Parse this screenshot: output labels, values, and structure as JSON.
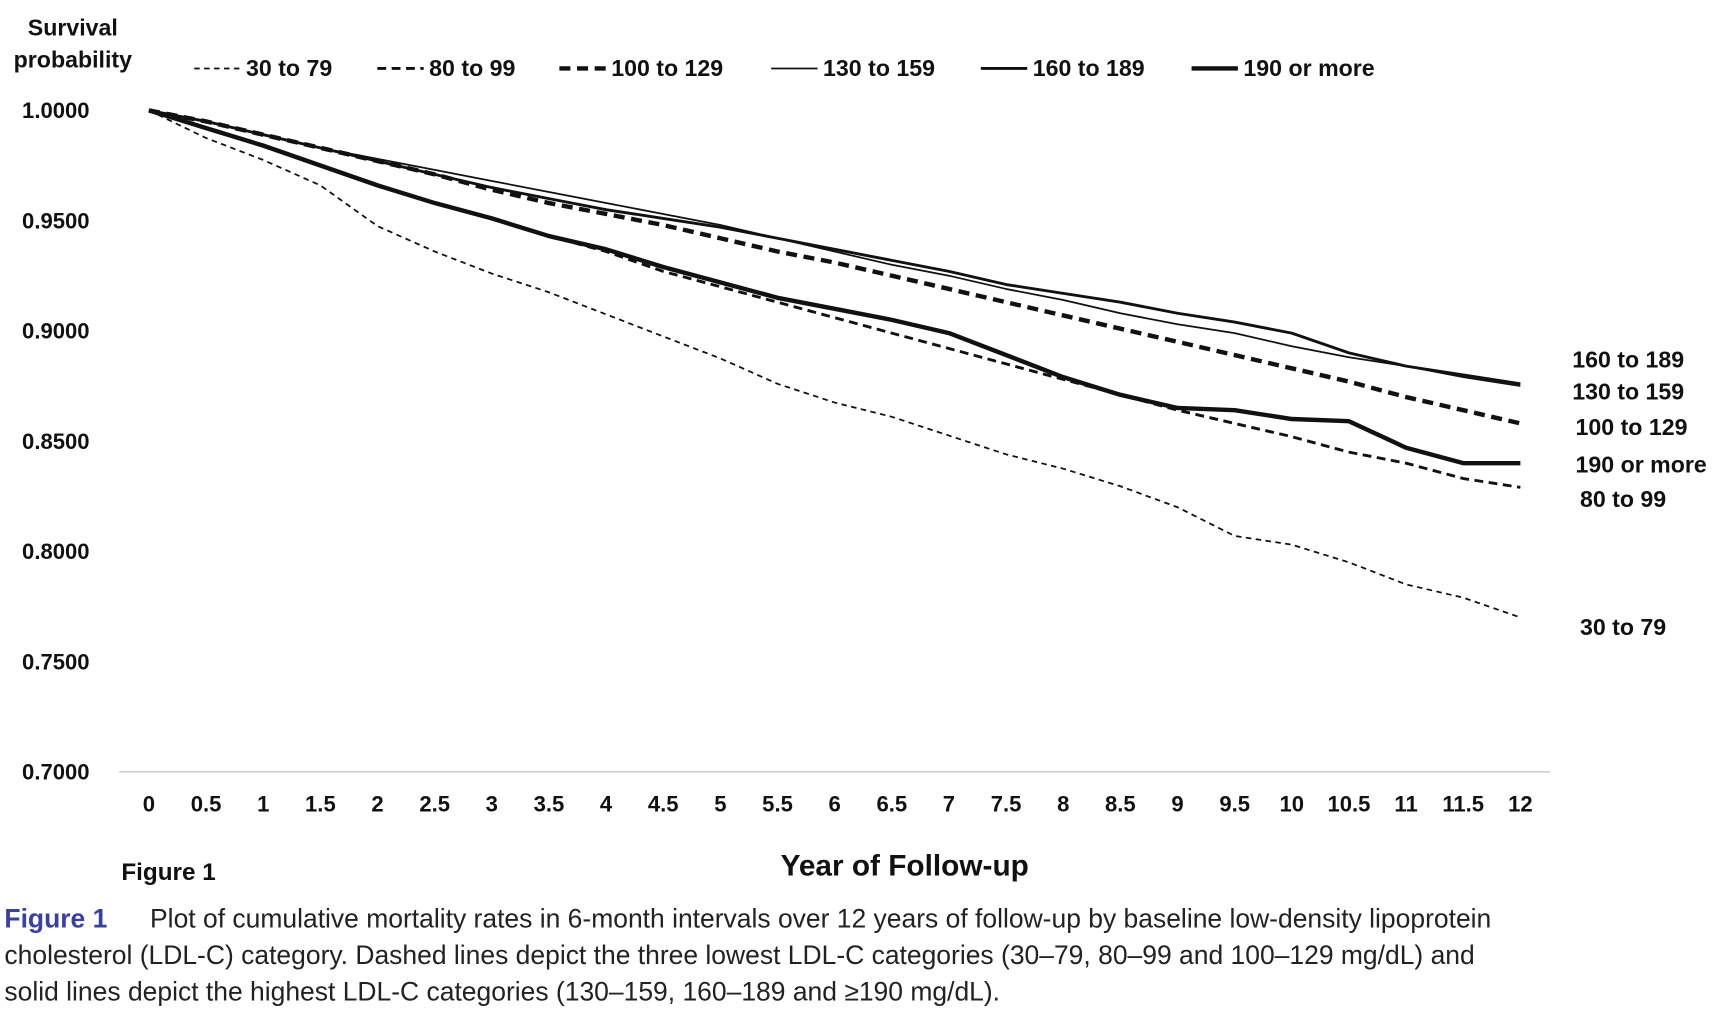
{
  "chart_data": {
    "type": "line",
    "ylabel_lines": [
      "Survival",
      "probability"
    ],
    "xlabel": "Year of Follow-up",
    "figure_label": "Figure 1",
    "ylim": [
      0.7,
      1.0
    ],
    "xlim": [
      0,
      12
    ],
    "y_ticks": [
      "1.0000",
      "0.9500",
      "0.9000",
      "0.8500",
      "0.8000",
      "0.7500",
      "0.7000"
    ],
    "x": [
      0,
      0.5,
      1,
      1.5,
      2,
      2.5,
      3,
      3.5,
      4,
      4.5,
      5,
      5.5,
      6,
      6.5,
      7,
      7.5,
      8,
      8.5,
      9,
      9.5,
      10,
      10.5,
      11,
      11.5,
      12
    ],
    "x_tick_labels": [
      "0",
      "0.5",
      "1",
      "1.5",
      "2",
      "2.5",
      "3",
      "3.5",
      "4",
      "4.5",
      "5",
      "5.5",
      "6",
      "6.5",
      "7",
      "7.5",
      "8",
      "8.5",
      "9",
      "9.5",
      "10",
      "10.5",
      "11",
      "11.5",
      "12"
    ],
    "grid": false,
    "legend_position": "top",
    "series": [
      {
        "name": "30 to 79",
        "style": "dashed-thin",
        "values": [
          1,
          0.9875,
          0.9775,
          0.966,
          0.9475,
          0.936,
          0.926,
          0.9175,
          0.9075,
          0.8975,
          0.8875,
          0.876,
          0.8675,
          0.861,
          0.8525,
          0.844,
          0.8375,
          0.8295,
          0.82,
          0.807,
          0.803,
          0.795,
          0.785,
          0.779,
          0.77
        ]
      },
      {
        "name": "80 to 99",
        "style": "dashed-medium",
        "values": [
          1,
          0.992,
          0.984,
          0.975,
          0.966,
          0.958,
          0.951,
          0.943,
          0.936,
          0.927,
          0.92,
          0.913,
          0.906,
          0.899,
          0.892,
          0.885,
          0.878,
          0.871,
          0.864,
          0.858,
          0.852,
          0.845,
          0.84,
          0.833,
          0.829
        ]
      },
      {
        "name": "100 to 129",
        "style": "dashed-thick",
        "values": [
          1,
          0.995,
          0.989,
          0.983,
          0.977,
          0.971,
          0.964,
          0.958,
          0.953,
          0.948,
          0.942,
          0.936,
          0.931,
          0.925,
          0.919,
          0.913,
          0.907,
          0.901,
          0.895,
          0.889,
          0.883,
          0.877,
          0.87,
          0.864,
          0.858
        ]
      },
      {
        "name": "130 to 159",
        "style": "solid-thin",
        "values": [
          1,
          0.995,
          0.989,
          0.983,
          0.978,
          0.973,
          0.968,
          0.963,
          0.958,
          0.953,
          0.948,
          0.942,
          0.936,
          0.93,
          0.925,
          0.919,
          0.914,
          0.908,
          0.903,
          0.899,
          0.893,
          0.888,
          0.884,
          0.879,
          0.875
        ]
      },
      {
        "name": "160 to 189",
        "style": "solid-medium",
        "values": [
          1,
          0.995,
          0.989,
          0.983,
          0.977,
          0.971,
          0.965,
          0.96,
          0.955,
          0.951,
          0.947,
          0.942,
          0.937,
          0.932,
          0.927,
          0.921,
          0.917,
          0.913,
          0.908,
          0.904,
          0.899,
          0.89,
          0.884,
          0.88,
          0.876
        ]
      },
      {
        "name": "190 or more",
        "style": "solid-thick",
        "values": [
          1,
          0.992,
          0.984,
          0.975,
          0.966,
          0.958,
          0.951,
          0.943,
          0.937,
          0.929,
          0.922,
          0.915,
          0.91,
          0.905,
          0.899,
          0.889,
          0.879,
          0.871,
          0.865,
          0.864,
          0.86,
          0.859,
          0.847,
          0.84,
          0.84
        ]
      }
    ],
    "end_labels": [
      "160 to 189",
      "130 to 159",
      "100 to 129",
      "190 or more",
      "80 to 99",
      "30 to 79"
    ]
  },
  "caption": {
    "label": "Figure 1",
    "lines": [
      "Plot of cumulative mortality rates in 6-month intervals over 12 years of follow-up by baseline low-density lipoprotein",
      "cholesterol (LDL-C) category. Dashed lines depict the three lowest LDL-C categories (30–79, 80–99 and 100–129 mg/dL) and",
      "solid lines depict the highest LDL-C categories (130–159, 160–189 and ≥190 mg/dL)."
    ]
  }
}
